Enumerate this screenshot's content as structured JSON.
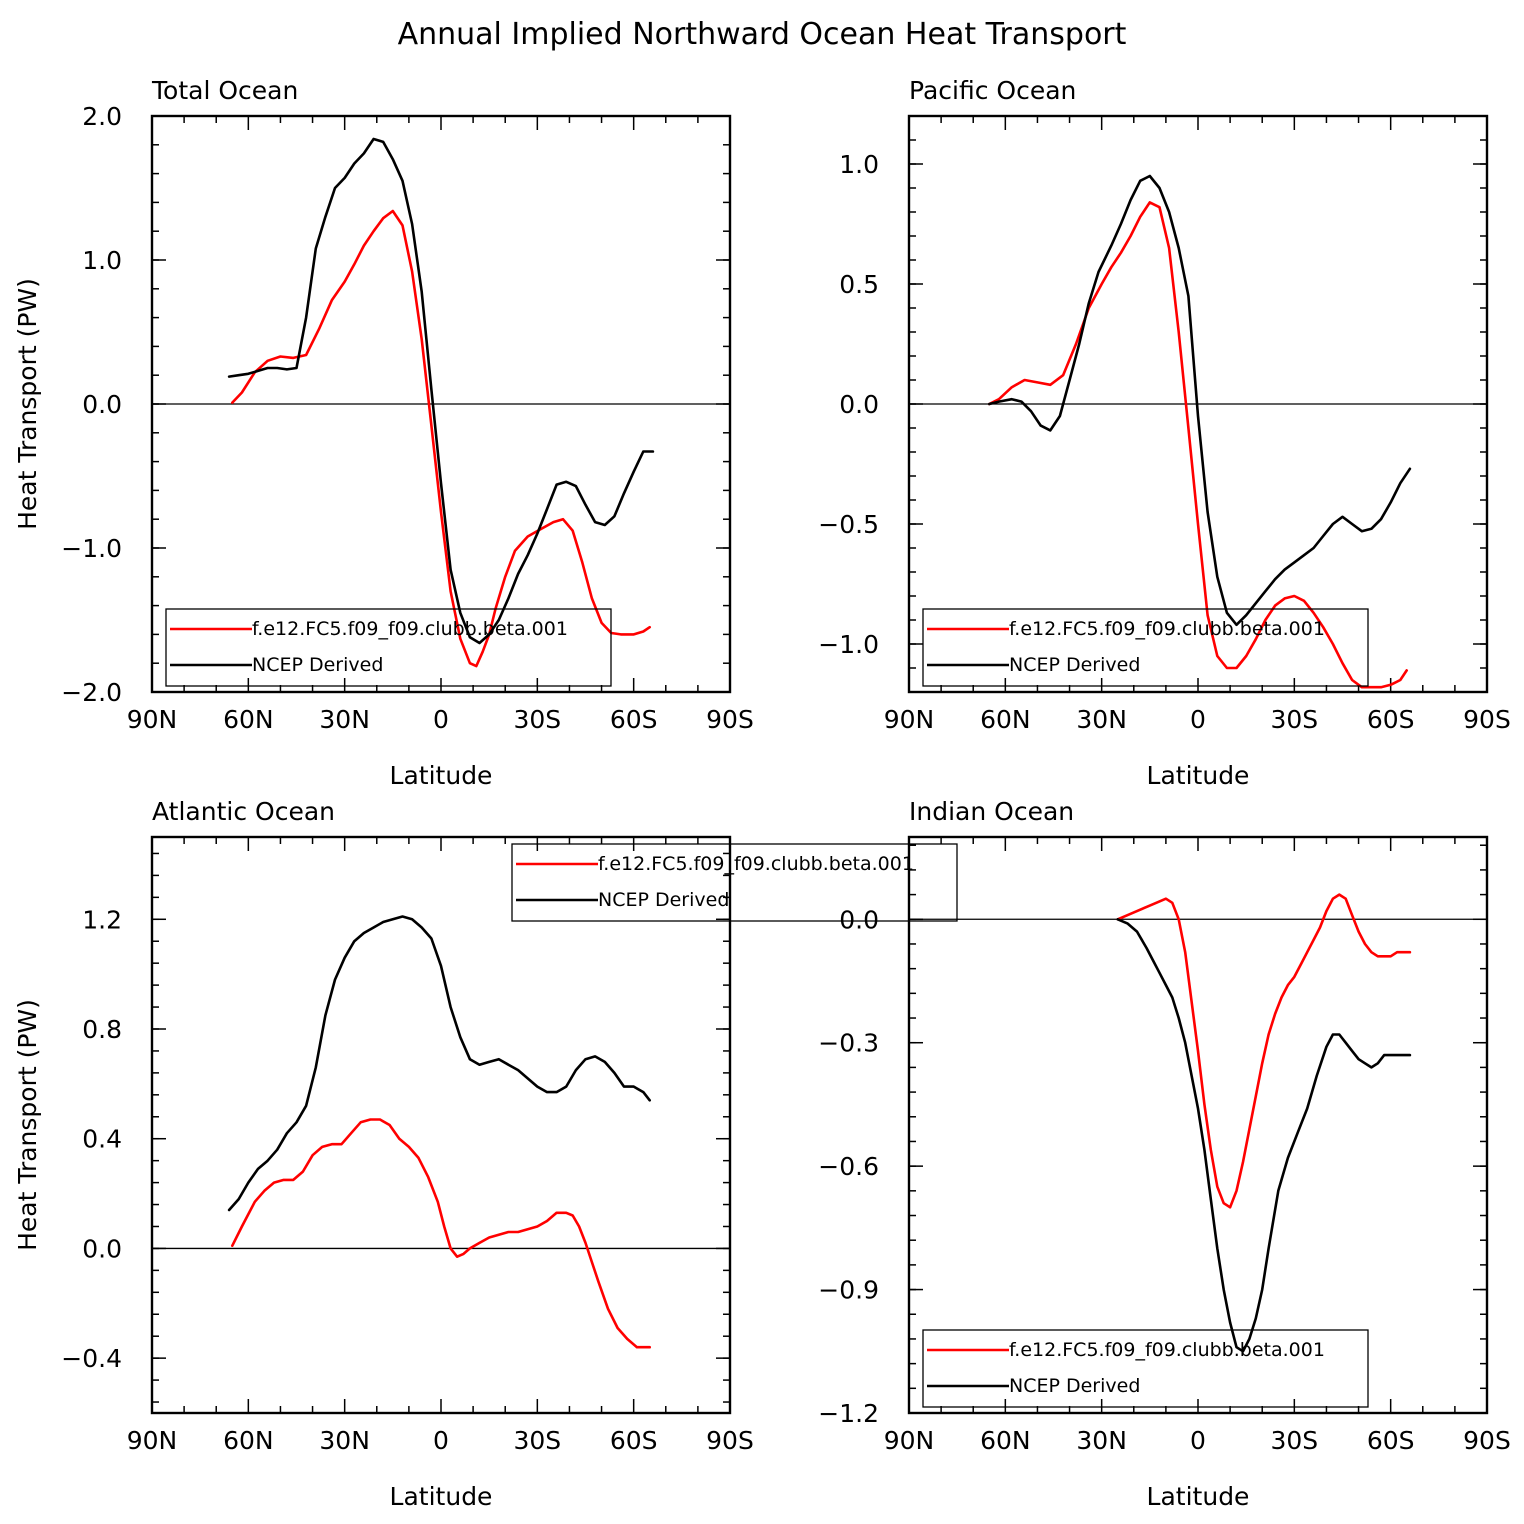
{
  "title": "Annual Implied Northward Ocean Heat Transport",
  "colors": {
    "model": "#ff0000",
    "obs": "#000000"
  },
  "chart_data": [
    {
      "type": "line",
      "title": "Total Ocean",
      "xlabel": "Latitude",
      "ylabel": "Heat Transport (PW)",
      "xlim": [
        90,
        -90
      ],
      "ylim": [
        -2.0,
        2.0
      ],
      "xticks": [
        {
          "value": 90,
          "label": "90N"
        },
        {
          "value": 60,
          "label": "60N"
        },
        {
          "value": 30,
          "label": "30N"
        },
        {
          "value": 0,
          "label": "0"
        },
        {
          "value": -30,
          "label": "30S"
        },
        {
          "value": -60,
          "label": "60S"
        },
        {
          "value": -90,
          "label": "90S"
        }
      ],
      "yticks": [
        {
          "value": 2.0,
          "label": "2.0"
        },
        {
          "value": 1.0,
          "label": "1.0"
        },
        {
          "value": 0.0,
          "label": "0.0"
        },
        {
          "value": -1.0,
          "label": "−1.0"
        },
        {
          "value": -2.0,
          "label": "−2.0"
        }
      ],
      "legend_position": "bottom-left",
      "series": [
        {
          "name": "f.e12.FC5.f09_f09.clubb.beta.001",
          "color": "#ff0000",
          "x": [
            65,
            62,
            58,
            54,
            50,
            46,
            42,
            38,
            34,
            30,
            27,
            24,
            21,
            18,
            15,
            12,
            9,
            6,
            3,
            0,
            -3,
            -6,
            -9,
            -11,
            -13,
            -15,
            -17,
            -20,
            -23,
            -27,
            -31,
            -35,
            -38,
            -41,
            -44,
            -47,
            -50,
            -53,
            -56,
            -60,
            -63,
            -65
          ],
          "y": [
            0.01,
            0.08,
            0.22,
            0.3,
            0.33,
            0.32,
            0.34,
            0.52,
            0.72,
            0.85,
            0.97,
            1.1,
            1.2,
            1.29,
            1.34,
            1.24,
            0.92,
            0.45,
            -0.15,
            -0.75,
            -1.3,
            -1.63,
            -1.8,
            -1.82,
            -1.72,
            -1.6,
            -1.42,
            -1.2,
            -1.02,
            -0.92,
            -0.87,
            -0.82,
            -0.8,
            -0.88,
            -1.1,
            -1.35,
            -1.52,
            -1.59,
            -1.6,
            -1.6,
            -1.58,
            -1.55
          ]
        },
        {
          "name": "NCEP Derived",
          "color": "#000000",
          "x": [
            66,
            63,
            60,
            57,
            54,
            51,
            48,
            45,
            42,
            39,
            36,
            33,
            30,
            27,
            24,
            21,
            18,
            15,
            12,
            9,
            6,
            3,
            0,
            -3,
            -6,
            -9,
            -12,
            -15,
            -18,
            -21,
            -24,
            -27,
            -30,
            -33,
            -36,
            -39,
            -42,
            -45,
            -48,
            -51,
            -54,
            -57,
            -60,
            -63,
            -66
          ],
          "y": [
            0.19,
            0.2,
            0.21,
            0.23,
            0.25,
            0.25,
            0.24,
            0.25,
            0.6,
            1.08,
            1.3,
            1.5,
            1.57,
            1.67,
            1.74,
            1.84,
            1.82,
            1.7,
            1.55,
            1.25,
            0.78,
            0.1,
            -0.55,
            -1.15,
            -1.45,
            -1.62,
            -1.66,
            -1.6,
            -1.5,
            -1.35,
            -1.18,
            -1.05,
            -0.9,
            -0.73,
            -0.56,
            -0.54,
            -0.57,
            -0.7,
            -0.82,
            -0.84,
            -0.78,
            -0.62,
            -0.47,
            -0.33,
            -0.33
          ]
        }
      ]
    },
    {
      "type": "line",
      "title": "Pacific Ocean",
      "xlabel": "Latitude",
      "ylabel": "",
      "xlim": [
        90,
        -90
      ],
      "ylim": [
        -1.2,
        1.2
      ],
      "xticks": [
        {
          "value": 90,
          "label": "90N"
        },
        {
          "value": 60,
          "label": "60N"
        },
        {
          "value": 30,
          "label": "30N"
        },
        {
          "value": 0,
          "label": "0"
        },
        {
          "value": -30,
          "label": "30S"
        },
        {
          "value": -60,
          "label": "60S"
        },
        {
          "value": -90,
          "label": "90S"
        }
      ],
      "yticks": [
        {
          "value": 1.0,
          "label": "1.0"
        },
        {
          "value": 0.5,
          "label": "0.5"
        },
        {
          "value": 0.0,
          "label": "0.0"
        },
        {
          "value": -0.5,
          "label": "−0.5"
        },
        {
          "value": -1.0,
          "label": "−1.0"
        }
      ],
      "legend_position": "bottom-left",
      "series": [
        {
          "name": "f.e12.FC5.f09_f09.clubb.beta.001",
          "color": "#ff0000",
          "x": [
            65,
            62,
            58,
            54,
            50,
            46,
            42,
            38,
            34,
            30,
            27,
            24,
            21,
            18,
            15,
            12,
            9,
            6,
            3,
            0,
            -3,
            -6,
            -9,
            -12,
            -15,
            -18,
            -21,
            -24,
            -27,
            -30,
            -33,
            -36,
            -39,
            -42,
            -45,
            -48,
            -51,
            -54,
            -57,
            -60,
            -63,
            -65
          ],
          "y": [
            0.0,
            0.02,
            0.07,
            0.1,
            0.09,
            0.08,
            0.12,
            0.25,
            0.4,
            0.5,
            0.57,
            0.63,
            0.7,
            0.78,
            0.84,
            0.82,
            0.65,
            0.3,
            -0.1,
            -0.5,
            -0.88,
            -1.05,
            -1.1,
            -1.1,
            -1.05,
            -0.98,
            -0.9,
            -0.84,
            -0.81,
            -0.8,
            -0.82,
            -0.87,
            -0.93,
            -1.0,
            -1.08,
            -1.15,
            -1.18,
            -1.18,
            -1.18,
            -1.17,
            -1.15,
            -1.11
          ]
        },
        {
          "name": "NCEP Derived",
          "color": "#000000",
          "x": [
            65,
            62,
            58,
            55,
            52,
            49,
            46,
            43,
            40,
            37,
            34,
            31,
            27,
            24,
            21,
            18,
            15,
            12,
            9,
            6,
            3,
            0,
            -3,
            -6,
            -9,
            -12,
            -15,
            -18,
            -21,
            -24,
            -27,
            -30,
            -33,
            -36,
            -39,
            -42,
            -45,
            -48,
            -51,
            -54,
            -57,
            -60,
            -63,
            -66
          ],
          "y": [
            0.0,
            0.01,
            0.02,
            0.01,
            -0.03,
            -0.09,
            -0.11,
            -0.05,
            0.1,
            0.25,
            0.42,
            0.55,
            0.66,
            0.75,
            0.85,
            0.93,
            0.95,
            0.9,
            0.8,
            0.65,
            0.45,
            -0.05,
            -0.45,
            -0.72,
            -0.87,
            -0.92,
            -0.88,
            -0.83,
            -0.78,
            -0.73,
            -0.69,
            -0.66,
            -0.63,
            -0.6,
            -0.55,
            -0.5,
            -0.47,
            -0.5,
            -0.53,
            -0.52,
            -0.48,
            -0.41,
            -0.33,
            -0.27
          ]
        }
      ]
    },
    {
      "type": "line",
      "title": "Atlantic Ocean",
      "xlabel": "Latitude",
      "ylabel": "Heat Transport (PW)",
      "xlim": [
        90,
        -90
      ],
      "ylim": [
        -0.6,
        1.5
      ],
      "xticks": [
        {
          "value": 90,
          "label": "90N"
        },
        {
          "value": 60,
          "label": "60N"
        },
        {
          "value": 30,
          "label": "30N"
        },
        {
          "value": 0,
          "label": "0"
        },
        {
          "value": -30,
          "label": "30S"
        },
        {
          "value": -60,
          "label": "60S"
        },
        {
          "value": -90,
          "label": "90S"
        }
      ],
      "yticks": [
        {
          "value": 1.2,
          "label": "1.2"
        },
        {
          "value": 0.8,
          "label": "0.8"
        },
        {
          "value": 0.4,
          "label": "0.4"
        },
        {
          "value": 0.0,
          "label": "0.0"
        },
        {
          "value": -0.4,
          "label": "−0.4"
        }
      ],
      "legend_position": "top-right",
      "series": [
        {
          "name": "f.e12.FC5.f09_f09.clubb.beta.001",
          "color": "#ff0000",
          "x": [
            65,
            62,
            58,
            55,
            52,
            49,
            46,
            43,
            40,
            37,
            34,
            31,
            28,
            25,
            22,
            19,
            16,
            13,
            10,
            7,
            4,
            1,
            -1,
            -3,
            -5,
            -7,
            -9,
            -12,
            -15,
            -18,
            -21,
            -24,
            -27,
            -30,
            -33,
            -36,
            -39,
            -41,
            -43,
            -45,
            -47,
            -49,
            -52,
            -55,
            -58,
            -61,
            -63,
            -65
          ],
          "y": [
            0.01,
            0.08,
            0.17,
            0.21,
            0.24,
            0.25,
            0.25,
            0.28,
            0.34,
            0.37,
            0.38,
            0.38,
            0.42,
            0.46,
            0.47,
            0.47,
            0.45,
            0.4,
            0.37,
            0.33,
            0.26,
            0.17,
            0.08,
            0.0,
            -0.03,
            -0.02,
            0.0,
            0.02,
            0.04,
            0.05,
            0.06,
            0.06,
            0.07,
            0.08,
            0.1,
            0.13,
            0.13,
            0.12,
            0.08,
            0.02,
            -0.05,
            -0.12,
            -0.22,
            -0.29,
            -0.33,
            -0.36,
            -0.36,
            -0.36
          ]
        },
        {
          "name": "NCEP Derived",
          "color": "#000000",
          "x": [
            66,
            63,
            60,
            57,
            54,
            51,
            48,
            45,
            42,
            39,
            36,
            33,
            30,
            27,
            24,
            21,
            18,
            15,
            12,
            9,
            6,
            3,
            0,
            -3,
            -6,
            -9,
            -12,
            -15,
            -18,
            -21,
            -24,
            -27,
            -30,
            -33,
            -36,
            -39,
            -42,
            -45,
            -48,
            -51,
            -54,
            -57,
            -60,
            -63,
            -65
          ],
          "y": [
            0.14,
            0.18,
            0.24,
            0.29,
            0.32,
            0.36,
            0.42,
            0.46,
            0.52,
            0.66,
            0.85,
            0.98,
            1.06,
            1.12,
            1.15,
            1.17,
            1.19,
            1.2,
            1.21,
            1.2,
            1.17,
            1.13,
            1.03,
            0.88,
            0.77,
            0.69,
            0.67,
            0.68,
            0.69,
            0.67,
            0.65,
            0.62,
            0.59,
            0.57,
            0.57,
            0.59,
            0.65,
            0.69,
            0.7,
            0.68,
            0.64,
            0.59,
            0.59,
            0.57,
            0.54
          ]
        }
      ]
    },
    {
      "type": "line",
      "title": "Indian Ocean",
      "xlabel": "Latitude",
      "ylabel": "",
      "xlim": [
        90,
        -90
      ],
      "ylim": [
        -1.2,
        0.2
      ],
      "xticks": [
        {
          "value": 90,
          "label": "90N"
        },
        {
          "value": 60,
          "label": "60N"
        },
        {
          "value": 30,
          "label": "30N"
        },
        {
          "value": 0,
          "label": "0"
        },
        {
          "value": -30,
          "label": "30S"
        },
        {
          "value": -60,
          "label": "60S"
        },
        {
          "value": -90,
          "label": "90S"
        }
      ],
      "yticks": [
        {
          "value": 0.0,
          "label": "0.0"
        },
        {
          "value": -0.3,
          "label": "−0.3"
        },
        {
          "value": -0.6,
          "label": "−0.6"
        },
        {
          "value": -0.9,
          "label": "−0.9"
        },
        {
          "value": -1.2,
          "label": "−1.2"
        }
      ],
      "legend_position": "bottom-left",
      "series": [
        {
          "name": "f.e12.FC5.f09_f09.clubb.beta.001",
          "color": "#ff0000",
          "x": [
            25,
            22,
            19,
            16,
            13,
            10,
            8,
            6,
            4,
            2,
            0,
            -2,
            -4,
            -6,
            -8,
            -10,
            -12,
            -14,
            -16,
            -18,
            -20,
            -22,
            -24,
            -26,
            -28,
            -30,
            -32,
            -34,
            -36,
            -38,
            -40,
            -42,
            -44,
            -46,
            -48,
            -50,
            -52,
            -54,
            -56,
            -58,
            -60,
            -62,
            -64,
            -66
          ],
          "y": [
            0.0,
            0.01,
            0.02,
            0.03,
            0.04,
            0.05,
            0.04,
            0.0,
            -0.08,
            -0.2,
            -0.32,
            -0.45,
            -0.56,
            -0.65,
            -0.69,
            -0.7,
            -0.66,
            -0.59,
            -0.51,
            -0.43,
            -0.35,
            -0.28,
            -0.23,
            -0.19,
            -0.16,
            -0.14,
            -0.11,
            -0.08,
            -0.05,
            -0.02,
            0.02,
            0.05,
            0.06,
            0.05,
            0.01,
            -0.03,
            -0.06,
            -0.08,
            -0.09,
            -0.09,
            -0.09,
            -0.08,
            -0.08,
            -0.08
          ]
        },
        {
          "name": "NCEP Derived",
          "color": "#000000",
          "x": [
            25,
            22,
            19,
            16,
            14,
            12,
            10,
            8,
            6,
            4,
            2,
            0,
            -2,
            -4,
            -6,
            -8,
            -10,
            -12,
            -14,
            -16,
            -18,
            -20,
            -22,
            -25,
            -28,
            -31,
            -34,
            -37,
            -40,
            -42,
            -44,
            -46,
            -48,
            -50,
            -52,
            -54,
            -56,
            -58,
            -60,
            -62,
            -64,
            -66
          ],
          "y": [
            0.0,
            -0.01,
            -0.03,
            -0.07,
            -0.1,
            -0.13,
            -0.16,
            -0.19,
            -0.24,
            -0.3,
            -0.38,
            -0.46,
            -0.56,
            -0.68,
            -0.8,
            -0.9,
            -0.98,
            -1.04,
            -1.05,
            -1.02,
            -0.97,
            -0.9,
            -0.8,
            -0.66,
            -0.58,
            -0.52,
            -0.46,
            -0.38,
            -0.31,
            -0.28,
            -0.28,
            -0.3,
            -0.32,
            -0.34,
            -0.35,
            -0.36,
            -0.35,
            -0.33,
            -0.33,
            -0.33,
            -0.33,
            -0.33
          ]
        }
      ]
    }
  ]
}
